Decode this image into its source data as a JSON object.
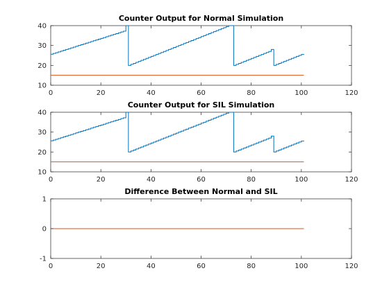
{
  "chart_data": [
    {
      "type": "line",
      "title": "Counter Output for Normal Simulation",
      "xlabel": "",
      "ylabel": "",
      "xlim": [
        0,
        120
      ],
      "ylim": [
        10,
        40
      ],
      "xticks": [
        0,
        20,
        40,
        60,
        80,
        100,
        120
      ],
      "yticks": [
        10,
        20,
        30,
        40
      ],
      "grid": false,
      "legend": "none",
      "series": [
        {
          "color": "#0072BD",
          "style": "stairs",
          "x": [
            0,
            1,
            2,
            3,
            4,
            5,
            6,
            7,
            8,
            9,
            10,
            11,
            12,
            13,
            14,
            15,
            16,
            17,
            18,
            19,
            20,
            21,
            22,
            23,
            24,
            25,
            26,
            27,
            28,
            29,
            30,
            31,
            32,
            33,
            34,
            35,
            36,
            37,
            38,
            39,
            40,
            41,
            42,
            43,
            44,
            45,
            46,
            47,
            48,
            49,
            50,
            51,
            52,
            53,
            54,
            55,
            56,
            57,
            58,
            59,
            60,
            61,
            62,
            63,
            64,
            65,
            66,
            67,
            68,
            69,
            70,
            71,
            72,
            73,
            74,
            75,
            76,
            77,
            78,
            79,
            80,
            81,
            82,
            83,
            84,
            85,
            86,
            87,
            88,
            89,
            90,
            91,
            92,
            93,
            94,
            95,
            96,
            97,
            98,
            99,
            100,
            101
          ],
          "y": [
            25.6,
            26,
            26.4,
            26.8,
            27.2,
            27.6,
            28,
            28.4,
            28.8,
            29.2,
            29.6,
            30,
            30.4,
            30.8,
            31.2,
            31.6,
            32,
            32.4,
            32.8,
            33.2,
            33.6,
            34,
            34.4,
            34.8,
            35.2,
            35.6,
            36,
            36.4,
            36.8,
            37.2,
            40,
            20,
            20.5,
            21,
            21.5,
            22,
            22.5,
            23,
            23.5,
            24,
            24.5,
            25,
            25.5,
            26,
            26.5,
            27,
            27.5,
            28,
            28.5,
            29,
            29.5,
            30,
            30.5,
            31,
            31.5,
            32,
            32.5,
            33,
            33.5,
            34,
            34.5,
            35,
            35.5,
            36,
            36.5,
            37,
            37.5,
            38,
            38.5,
            39,
            39.5,
            40,
            40,
            20,
            20.5,
            21,
            21.5,
            22,
            22.5,
            23,
            23.5,
            24,
            24.5,
            25,
            25.5,
            26,
            26.5,
            27,
            28,
            20,
            20.5,
            21,
            21.5,
            22,
            22.5,
            23,
            23.5,
            24,
            24.5,
            25,
            25.5,
            25.6
          ]
        },
        {
          "color": "#D95319",
          "style": "line",
          "x": [
            0,
            101
          ],
          "y": [
            15,
            15
          ]
        }
      ]
    },
    {
      "type": "line",
      "title": "Counter Output for SIL Simulation",
      "xlabel": "",
      "ylabel": "",
      "xlim": [
        0,
        120
      ],
      "ylim": [
        10,
        40
      ],
      "xticks": [
        0,
        20,
        40,
        60,
        80,
        100,
        120
      ],
      "yticks": [
        10,
        20,
        30,
        40
      ],
      "grid": false,
      "legend": "none",
      "series": [
        {
          "color": "#0072BD",
          "style": "stairs",
          "x": [
            0,
            1,
            2,
            3,
            4,
            5,
            6,
            7,
            8,
            9,
            10,
            11,
            12,
            13,
            14,
            15,
            16,
            17,
            18,
            19,
            20,
            21,
            22,
            23,
            24,
            25,
            26,
            27,
            28,
            29,
            30,
            31,
            32,
            33,
            34,
            35,
            36,
            37,
            38,
            39,
            40,
            41,
            42,
            43,
            44,
            45,
            46,
            47,
            48,
            49,
            50,
            51,
            52,
            53,
            54,
            55,
            56,
            57,
            58,
            59,
            60,
            61,
            62,
            63,
            64,
            65,
            66,
            67,
            68,
            69,
            70,
            71,
            72,
            73,
            74,
            75,
            76,
            77,
            78,
            79,
            80,
            81,
            82,
            83,
            84,
            85,
            86,
            87,
            88,
            89,
            90,
            91,
            92,
            93,
            94,
            95,
            96,
            97,
            98,
            99,
            100,
            101
          ],
          "y": [
            25.6,
            26,
            26.4,
            26.8,
            27.2,
            27.6,
            28,
            28.4,
            28.8,
            29.2,
            29.6,
            30,
            30.4,
            30.8,
            31.2,
            31.6,
            32,
            32.4,
            32.8,
            33.2,
            33.6,
            34,
            34.4,
            34.8,
            35.2,
            35.6,
            36,
            36.4,
            36.8,
            37.2,
            40,
            20,
            20.5,
            21,
            21.5,
            22,
            22.5,
            23,
            23.5,
            24,
            24.5,
            25,
            25.5,
            26,
            26.5,
            27,
            27.5,
            28,
            28.5,
            29,
            29.5,
            30,
            30.5,
            31,
            31.5,
            32,
            32.5,
            33,
            33.5,
            34,
            34.5,
            35,
            35.5,
            36,
            36.5,
            37,
            37.5,
            38,
            38.5,
            39,
            39.5,
            40,
            40,
            20,
            20.5,
            21,
            21.5,
            22,
            22.5,
            23,
            23.5,
            24,
            24.5,
            25,
            25.5,
            26,
            26.5,
            27,
            28,
            20,
            20.5,
            21,
            21.5,
            22,
            22.5,
            23,
            23.5,
            24,
            24.5,
            25,
            25.5,
            25.6
          ]
        },
        {
          "color": "#D95319",
          "style": "line",
          "x": [
            0,
            101
          ],
          "y": [
            15,
            15
          ]
        }
      ]
    },
    {
      "type": "line",
      "title": "Difference Between Normal and SIL",
      "xlabel": "",
      "ylabel": "",
      "xlim": [
        0,
        120
      ],
      "ylim": [
        -1,
        1
      ],
      "xticks": [
        0,
        20,
        40,
        60,
        80,
        100,
        120
      ],
      "yticks": [
        -1,
        0,
        1
      ],
      "grid": false,
      "legend": "none",
      "series": [
        {
          "color": "#0072BD",
          "style": "line",
          "x": [
            0,
            101
          ],
          "y": [
            0,
            0
          ]
        },
        {
          "color": "#D95319",
          "style": "line",
          "x": [
            0,
            101
          ],
          "y": [
            0,
            0
          ]
        }
      ]
    }
  ]
}
